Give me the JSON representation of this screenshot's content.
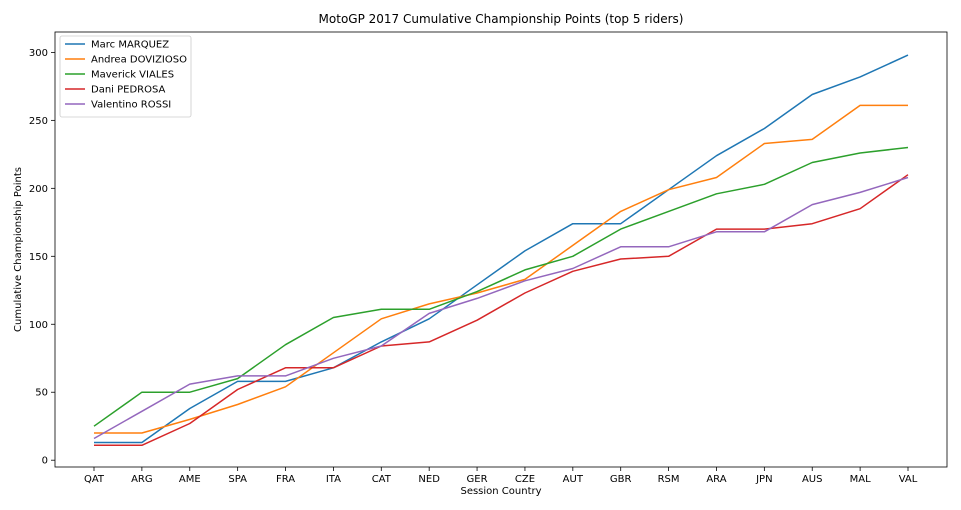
{
  "chart_data": {
    "type": "line",
    "title": "MotoGP 2017 Cumulative Championship Points (top 5 riders)",
    "xlabel": "Session Country",
    "ylabel": "Cumulative Championship Points",
    "categories": [
      "QAT",
      "ARG",
      "AME",
      "SPA",
      "FRA",
      "ITA",
      "CAT",
      "NED",
      "GER",
      "CZE",
      "AUT",
      "GBR",
      "RSM",
      "ARA",
      "JPN",
      "AUS",
      "MAL",
      "VAL"
    ],
    "ylim": [
      -5,
      315
    ],
    "yticks": [
      0,
      50,
      100,
      150,
      200,
      250,
      300
    ],
    "legend_position": "top-left",
    "grid": false,
    "series": [
      {
        "name": "Marc MARQUEZ",
        "color": "#1f77b4",
        "values": [
          13,
          13,
          38,
          58,
          58,
          68,
          87,
          104,
          129,
          154,
          174,
          174,
          199,
          224,
          244,
          269,
          282,
          298
        ]
      },
      {
        "name": "Andrea DOVIZIOSO",
        "color": "#ff7f0e",
        "values": [
          20,
          20,
          30,
          41,
          54,
          79,
          104,
          115,
          123,
          133,
          158,
          183,
          199,
          208,
          233,
          236,
          261,
          261
        ]
      },
      {
        "name": "Maverick VIALES",
        "color": "#2ca02c",
        "values": [
          25,
          50,
          50,
          60,
          85,
          105,
          111,
          111,
          124,
          140,
          150,
          170,
          183,
          196,
          203,
          219,
          226,
          230
        ]
      },
      {
        "name": "Dani PEDROSA",
        "color": "#d62728",
        "values": [
          11,
          11,
          27,
          52,
          68,
          68,
          84,
          87,
          103,
          123,
          139,
          148,
          150,
          170,
          170,
          174,
          185,
          210
        ]
      },
      {
        "name": "Valentino ROSSI",
        "color": "#9467bd",
        "values": [
          16,
          36,
          56,
          62,
          62,
          75,
          84,
          108,
          119,
          132,
          141,
          157,
          157,
          168,
          168,
          188,
          197,
          208
        ]
      }
    ]
  }
}
